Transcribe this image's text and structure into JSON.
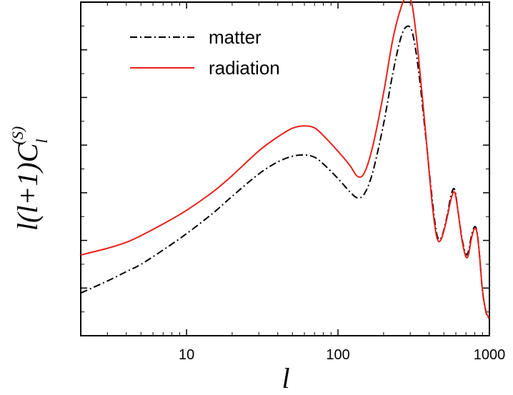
{
  "chart_data": {
    "type": "line",
    "xscale": "log",
    "xlim": [
      2,
      1000
    ],
    "ylim": [
      0,
      1
    ],
    "xticks": [
      10,
      100,
      1000
    ],
    "xtick_labels": [
      "10",
      "100",
      "1000"
    ],
    "xlabel": "l",
    "ylabel": {
      "main": "l(l+1)C",
      "sub": "l",
      "sup": "(S)"
    },
    "legend": {
      "placement": "top-left"
    },
    "colors": {
      "matter": "#000000",
      "radiation": "#e8201a"
    },
    "series": [
      {
        "name": "matter",
        "style": "dash-dot",
        "x": [
          2,
          3,
          4,
          5,
          7,
          10,
          15,
          20,
          30,
          40,
          50,
          60,
          70,
          80,
          100,
          120,
          135,
          150,
          170,
          200,
          230,
          260,
          285,
          310,
          340,
          380,
          420,
          450,
          480,
          520,
          560,
          590,
          620,
          660,
          700,
          730,
          760,
          800,
          830,
          860,
          900,
          950,
          1000
        ],
        "y": [
          0.128,
          0.164,
          0.192,
          0.214,
          0.257,
          0.306,
          0.368,
          0.418,
          0.485,
          0.521,
          0.538,
          0.542,
          0.535,
          0.515,
          0.471,
          0.431,
          0.413,
          0.427,
          0.492,
          0.635,
          0.786,
          0.893,
          0.927,
          0.908,
          0.797,
          0.595,
          0.405,
          0.303,
          0.293,
          0.35,
          0.424,
          0.438,
          0.375,
          0.29,
          0.244,
          0.256,
          0.299,
          0.327,
          0.308,
          0.242,
          0.134,
          0.07,
          0.05
        ]
      },
      {
        "name": "radiation",
        "style": "solid",
        "x": [
          2,
          3,
          4,
          5,
          7,
          10,
          15,
          20,
          30,
          40,
          50,
          60,
          70,
          80,
          100,
          120,
          135,
          150,
          170,
          200,
          230,
          260,
          285,
          310,
          340,
          380,
          420,
          450,
          480,
          520,
          560,
          590,
          620,
          660,
          700,
          730,
          760,
          800,
          830,
          860,
          900,
          950,
          1000
        ],
        "y": [
          0.242,
          0.262,
          0.28,
          0.3,
          0.335,
          0.376,
          0.432,
          0.48,
          0.554,
          0.596,
          0.622,
          0.629,
          0.623,
          0.6,
          0.553,
          0.51,
          0.477,
          0.49,
          0.57,
          0.728,
          0.888,
          0.982,
          1.016,
          0.987,
          0.837,
          0.603,
          0.39,
          0.294,
          0.289,
          0.345,
          0.412,
          0.43,
          0.373,
          0.285,
          0.236,
          0.246,
          0.291,
          0.322,
          0.305,
          0.242,
          0.136,
          0.072,
          0.052
        ]
      }
    ]
  }
}
